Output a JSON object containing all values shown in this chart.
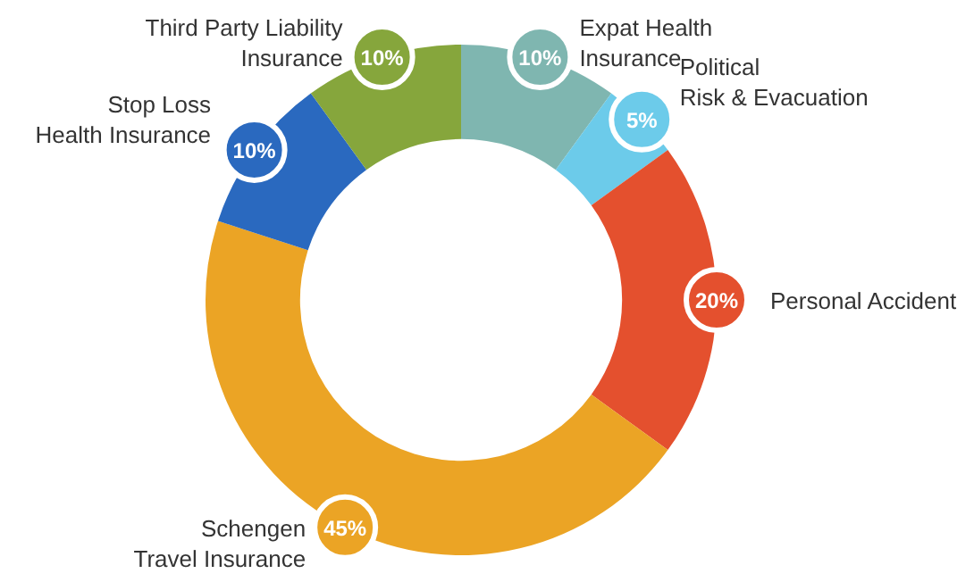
{
  "chart_data": {
    "type": "donut",
    "categories": [
      "Expat Health\nInsurance",
      "Political\nRisk & Evacuation",
      "Personal Accident",
      "Schengen\nTravel Insurance",
      "Stop Loss\nHealth Insurance",
      "Third Party Liability\nInsurance"
    ],
    "values": [
      10,
      5,
      20,
      45,
      10,
      10
    ],
    "value_labels": [
      "10%",
      "5%",
      "20%",
      "45%",
      "10%",
      "10%"
    ],
    "colors": [
      "#7fb6b0",
      "#6ccbea",
      "#e4502e",
      "#eba425",
      "#2a69bf",
      "#86a63c"
    ]
  }
}
